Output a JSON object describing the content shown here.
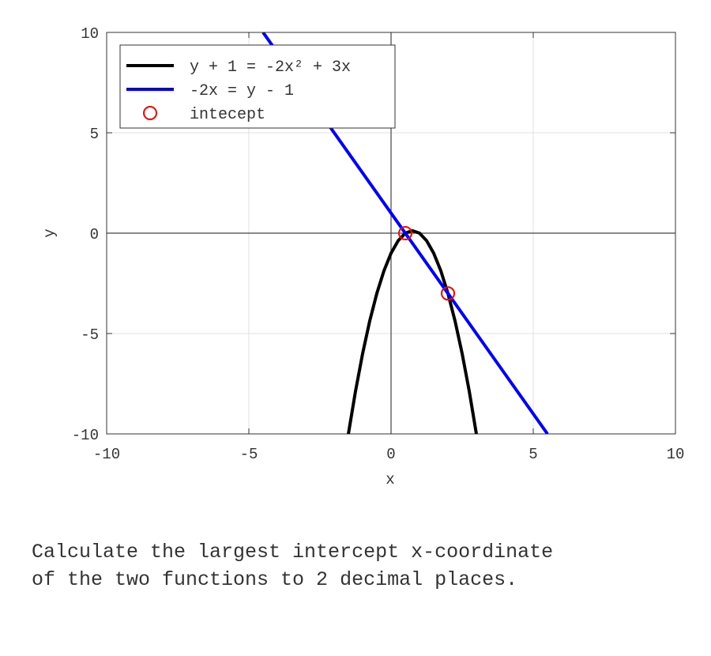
{
  "chart_data": {
    "type": "line",
    "xlabel": "x",
    "ylabel": "y",
    "xlim": [
      -10,
      10
    ],
    "ylim": [
      -10,
      10
    ],
    "xticks": [
      -10,
      -5,
      0,
      5,
      10
    ],
    "yticks": [
      -10,
      -5,
      0,
      5,
      10
    ],
    "grid": true,
    "legend": "upper left",
    "series": [
      {
        "name": "y + 1 = -2x² + 3x",
        "color": "#000000",
        "mode": "line",
        "x": [
          -1.5,
          -1.25,
          -1,
          -0.75,
          -0.5,
          -0.25,
          0,
          0.25,
          0.5,
          0.75,
          1,
          1.25,
          1.5,
          1.75,
          2,
          2.25,
          2.5,
          2.75,
          3
        ],
        "values": [
          -10,
          -7.875,
          -6,
          -4.375,
          -3,
          -1.875,
          -1,
          -0.375,
          0,
          0.125,
          0,
          -0.375,
          -1,
          -1.875,
          -3,
          -4.375,
          -6,
          -7.875,
          -10
        ]
      },
      {
        "name": "-2x = y - 1",
        "color": "#0000ff",
        "mode": "line",
        "x": [
          -4.5,
          5.5
        ],
        "values": [
          10,
          -10
        ]
      },
      {
        "name": "intecept",
        "color": "#ff0000",
        "mode": "markers",
        "x": [
          0.5,
          2
        ],
        "values": [
          0,
          -3
        ]
      }
    ]
  },
  "question": {
    "lines": [
      "Calculate the largest intercept x-coordinate",
      "of the two functions to 2 decimal places."
    ]
  }
}
